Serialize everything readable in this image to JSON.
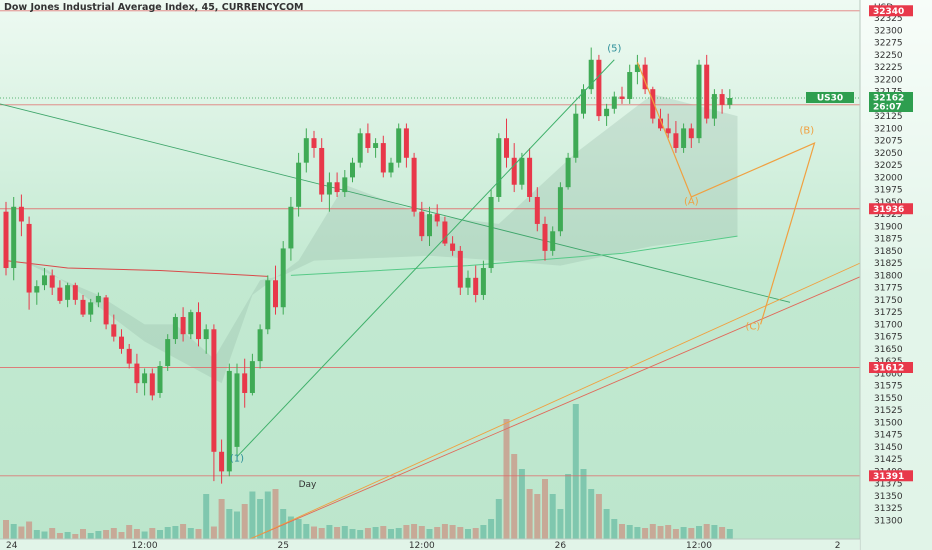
{
  "title": "Dow Jones Industrial Average Index, 45, CURRENCYCOM",
  "axis": {
    "currency": "USD"
  },
  "colors": {
    "bull": "#3faa55",
    "bear": "#e8384a",
    "vol_bull": "#6fbfa6",
    "vol_bear": "#c99a8a",
    "hline": "#e06a6a",
    "wave_elliott": "#3fb06a",
    "wave_correction": "#f0a040",
    "ma_red": "#d94a4a",
    "ma_green": "#2e9e4f",
    "tag_red": "#e8384a",
    "tag_green": "#2e9e4f"
  },
  "chart_data": {
    "type": "candlestick",
    "ylim": [
      31262,
      32362
    ],
    "y_ticks": [
      31300,
      31325,
      31350,
      31375,
      31400,
      31425,
      31450,
      31475,
      31500,
      31525,
      31550,
      31575,
      31600,
      31625,
      31650,
      31675,
      31700,
      31725,
      31750,
      31775,
      31800,
      31825,
      31850,
      31875,
      31900,
      31925,
      31950,
      31975,
      32000,
      32025,
      32050,
      32075,
      32100,
      32125,
      32150,
      32175,
      32200,
      32225,
      32250,
      32275,
      32300,
      32325
    ],
    "x_ticks": [
      {
        "label": "24",
        "bar": 0
      },
      {
        "label": "12:00",
        "bar": 18
      },
      {
        "label": "25",
        "bar": 36
      },
      {
        "label": "12:00",
        "bar": 54
      },
      {
        "label": "26",
        "bar": 72
      },
      {
        "label": "12:00",
        "bar": 90
      },
      {
        "label": "2",
        "bar": 108
      }
    ],
    "horizontal_levels": [
      {
        "price": 32340,
        "tag": "32340"
      },
      {
        "price": 32148,
        "tag": "32148"
      },
      {
        "price": 31936,
        "tag": "31936"
      },
      {
        "price": 31612,
        "tag": "31612"
      },
      {
        "price": 31391,
        "tag": "31391"
      }
    ],
    "current_price": {
      "symbol": "US30",
      "price": 32162,
      "countdown": "26:07"
    },
    "wave_labels": [
      {
        "text": "(5)",
        "bar": 79,
        "price": 32257,
        "color": "elliott"
      },
      {
        "text": "(1)",
        "bar": 30,
        "price": 31420,
        "color": "elliott"
      },
      {
        "text": "(A)",
        "bar": 89,
        "price": 31945,
        "color": "correction"
      },
      {
        "text": "(B)",
        "bar": 104,
        "price": 32090,
        "color": "correction"
      },
      {
        "text": "(C)",
        "bar": 97,
        "price": 31690,
        "color": "correction"
      }
    ],
    "note_label": {
      "text": "Day",
      "bar": 38,
      "price": 31368
    },
    "candles": [
      [
        31930,
        31950,
        31800,
        31815
      ],
      [
        31815,
        31960,
        31790,
        31940
      ],
      [
        31940,
        31965,
        31880,
        31910
      ],
      [
        31905,
        31920,
        31730,
        31765
      ],
      [
        31765,
        31790,
        31740,
        31778
      ],
      [
        31780,
        31815,
        31770,
        31800
      ],
      [
        31800,
        31812,
        31760,
        31775
      ],
      [
        31775,
        31790,
        31742,
        31748
      ],
      [
        31750,
        31785,
        31735,
        31780
      ],
      [
        31780,
        31785,
        31740,
        31750
      ],
      [
        31750,
        31760,
        31715,
        31720
      ],
      [
        31720,
        31752,
        31705,
        31745
      ],
      [
        31745,
        31765,
        31735,
        31758
      ],
      [
        31755,
        31760,
        31690,
        31700
      ],
      [
        31700,
        31720,
        31665,
        31675
      ],
      [
        31675,
        31690,
        31640,
        31650
      ],
      [
        31650,
        31660,
        31610,
        31620
      ],
      [
        31620,
        31640,
        31560,
        31580
      ],
      [
        31580,
        31610,
        31555,
        31600
      ],
      [
        31600,
        31610,
        31545,
        31555
      ],
      [
        31560,
        31625,
        31550,
        31615
      ],
      [
        31615,
        31680,
        31605,
        31670
      ],
      [
        31670,
        31722,
        31660,
        31715
      ],
      [
        31715,
        31735,
        31665,
        31680
      ],
      [
        31680,
        31730,
        31670,
        31725
      ],
      [
        31725,
        31745,
        31655,
        31670
      ],
      [
        31670,
        31700,
        31640,
        31690
      ],
      [
        31690,
        31700,
        31380,
        31440
      ],
      [
        31440,
        31465,
        31375,
        31400
      ],
      [
        31400,
        31620,
        31390,
        31605
      ],
      [
        31450,
        31620,
        31420,
        31600
      ],
      [
        31600,
        31630,
        31530,
        31560
      ],
      [
        31560,
        31640,
        31555,
        31625
      ],
      [
        31625,
        31700,
        31610,
        31690
      ],
      [
        31690,
        31800,
        31680,
        31790
      ],
      [
        31790,
        31820,
        31720,
        31735
      ],
      [
        31735,
        31870,
        31720,
        31855
      ],
      [
        31855,
        31960,
        31830,
        31940
      ],
      [
        31940,
        32050,
        31920,
        32030
      ],
      [
        32030,
        32100,
        32010,
        32080
      ],
      [
        32080,
        32095,
        32040,
        32060
      ],
      [
        32060,
        32080,
        31950,
        31965
      ],
      [
        31965,
        32010,
        31930,
        31990
      ],
      [
        31990,
        32010,
        31960,
        31970
      ],
      [
        31970,
        32015,
        31960,
        32000
      ],
      [
        32000,
        32040,
        31990,
        32030
      ],
      [
        32030,
        32100,
        32020,
        32090
      ],
      [
        32090,
        32110,
        32050,
        32060
      ],
      [
        32060,
        32080,
        32040,
        32070
      ],
      [
        32070,
        32085,
        32000,
        32010
      ],
      [
        32010,
        32040,
        32000,
        32030
      ],
      [
        32030,
        32110,
        32020,
        32100
      ],
      [
        32100,
        32110,
        32020,
        32040
      ],
      [
        32040,
        32050,
        31920,
        31930
      ],
      [
        31930,
        31950,
        31870,
        31880
      ],
      [
        31880,
        31940,
        31860,
        31925
      ],
      [
        31925,
        31945,
        31900,
        31910
      ],
      [
        31910,
        31920,
        31860,
        31865
      ],
      [
        31865,
        31880,
        31840,
        31850
      ],
      [
        31850,
        31860,
        31760,
        31775
      ],
      [
        31775,
        31810,
        31760,
        31795
      ],
      [
        31795,
        31820,
        31745,
        31760
      ],
      [
        31760,
        31830,
        31750,
        31815
      ],
      [
        31815,
        31975,
        31805,
        31960
      ],
      [
        31960,
        32090,
        31950,
        32080
      ],
      [
        32080,
        32120,
        32020,
        32040
      ],
      [
        32040,
        32070,
        31970,
        31985
      ],
      [
        31985,
        32050,
        31975,
        32040
      ],
      [
        32040,
        32060,
        31950,
        31960
      ],
      [
        31960,
        31980,
        31890,
        31905
      ],
      [
        31905,
        31920,
        31830,
        31850
      ],
      [
        31850,
        31900,
        31840,
        31890
      ],
      [
        31890,
        31990,
        31880,
        31980
      ],
      [
        31980,
        32050,
        31975,
        32040
      ],
      [
        32040,
        32150,
        32030,
        32130
      ],
      [
        32130,
        32190,
        32120,
        32180
      ],
      [
        32180,
        32265,
        32170,
        32240
      ],
      [
        32240,
        32250,
        32115,
        32125
      ],
      [
        32125,
        32150,
        32105,
        32140
      ],
      [
        32140,
        32175,
        32130,
        32165
      ],
      [
        32165,
        32185,
        32150,
        32160
      ],
      [
        32160,
        32230,
        32150,
        32215
      ],
      [
        32215,
        32250,
        32190,
        32230
      ],
      [
        32230,
        32245,
        32170,
        32180
      ],
      [
        32180,
        32185,
        32110,
        32120
      ],
      [
        32120,
        32140,
        32095,
        32100
      ],
      [
        32100,
        32130,
        32080,
        32090
      ],
      [
        32090,
        32115,
        32050,
        32060
      ],
      [
        32060,
        32110,
        32050,
        32100
      ],
      [
        32100,
        32110,
        32060,
        32080
      ],
      [
        32080,
        32240,
        32070,
        32230
      ],
      [
        32230,
        32250,
        32110,
        32120
      ],
      [
        32120,
        32180,
        32105,
        32170
      ],
      [
        32170,
        32180,
        32130,
        32148
      ],
      [
        32148,
        32180,
        32140,
        32162
      ]
    ],
    "volume": [
      38,
      30,
      25,
      35,
      18,
      15,
      22,
      12,
      14,
      10,
      20,
      12,
      16,
      18,
      22,
      14,
      28,
      20,
      15,
      22,
      18,
      24,
      26,
      30,
      22,
      20,
      90,
      25,
      80,
      60,
      55,
      70,
      95,
      80,
      95,
      100,
      60,
      45,
      40,
      30,
      25,
      22,
      28,
      24,
      26,
      20,
      18,
      22,
      24,
      26,
      20,
      22,
      28,
      30,
      26,
      20,
      24,
      30,
      28,
      24,
      20,
      22,
      28,
      40,
      80,
      240,
      170,
      140,
      100,
      90,
      120,
      90,
      60,
      130,
      270,
      140,
      100,
      90,
      60,
      40,
      30,
      28,
      24,
      22,
      30,
      26,
      28,
      20,
      24,
      22,
      26,
      30,
      28,
      24,
      20
    ]
  }
}
